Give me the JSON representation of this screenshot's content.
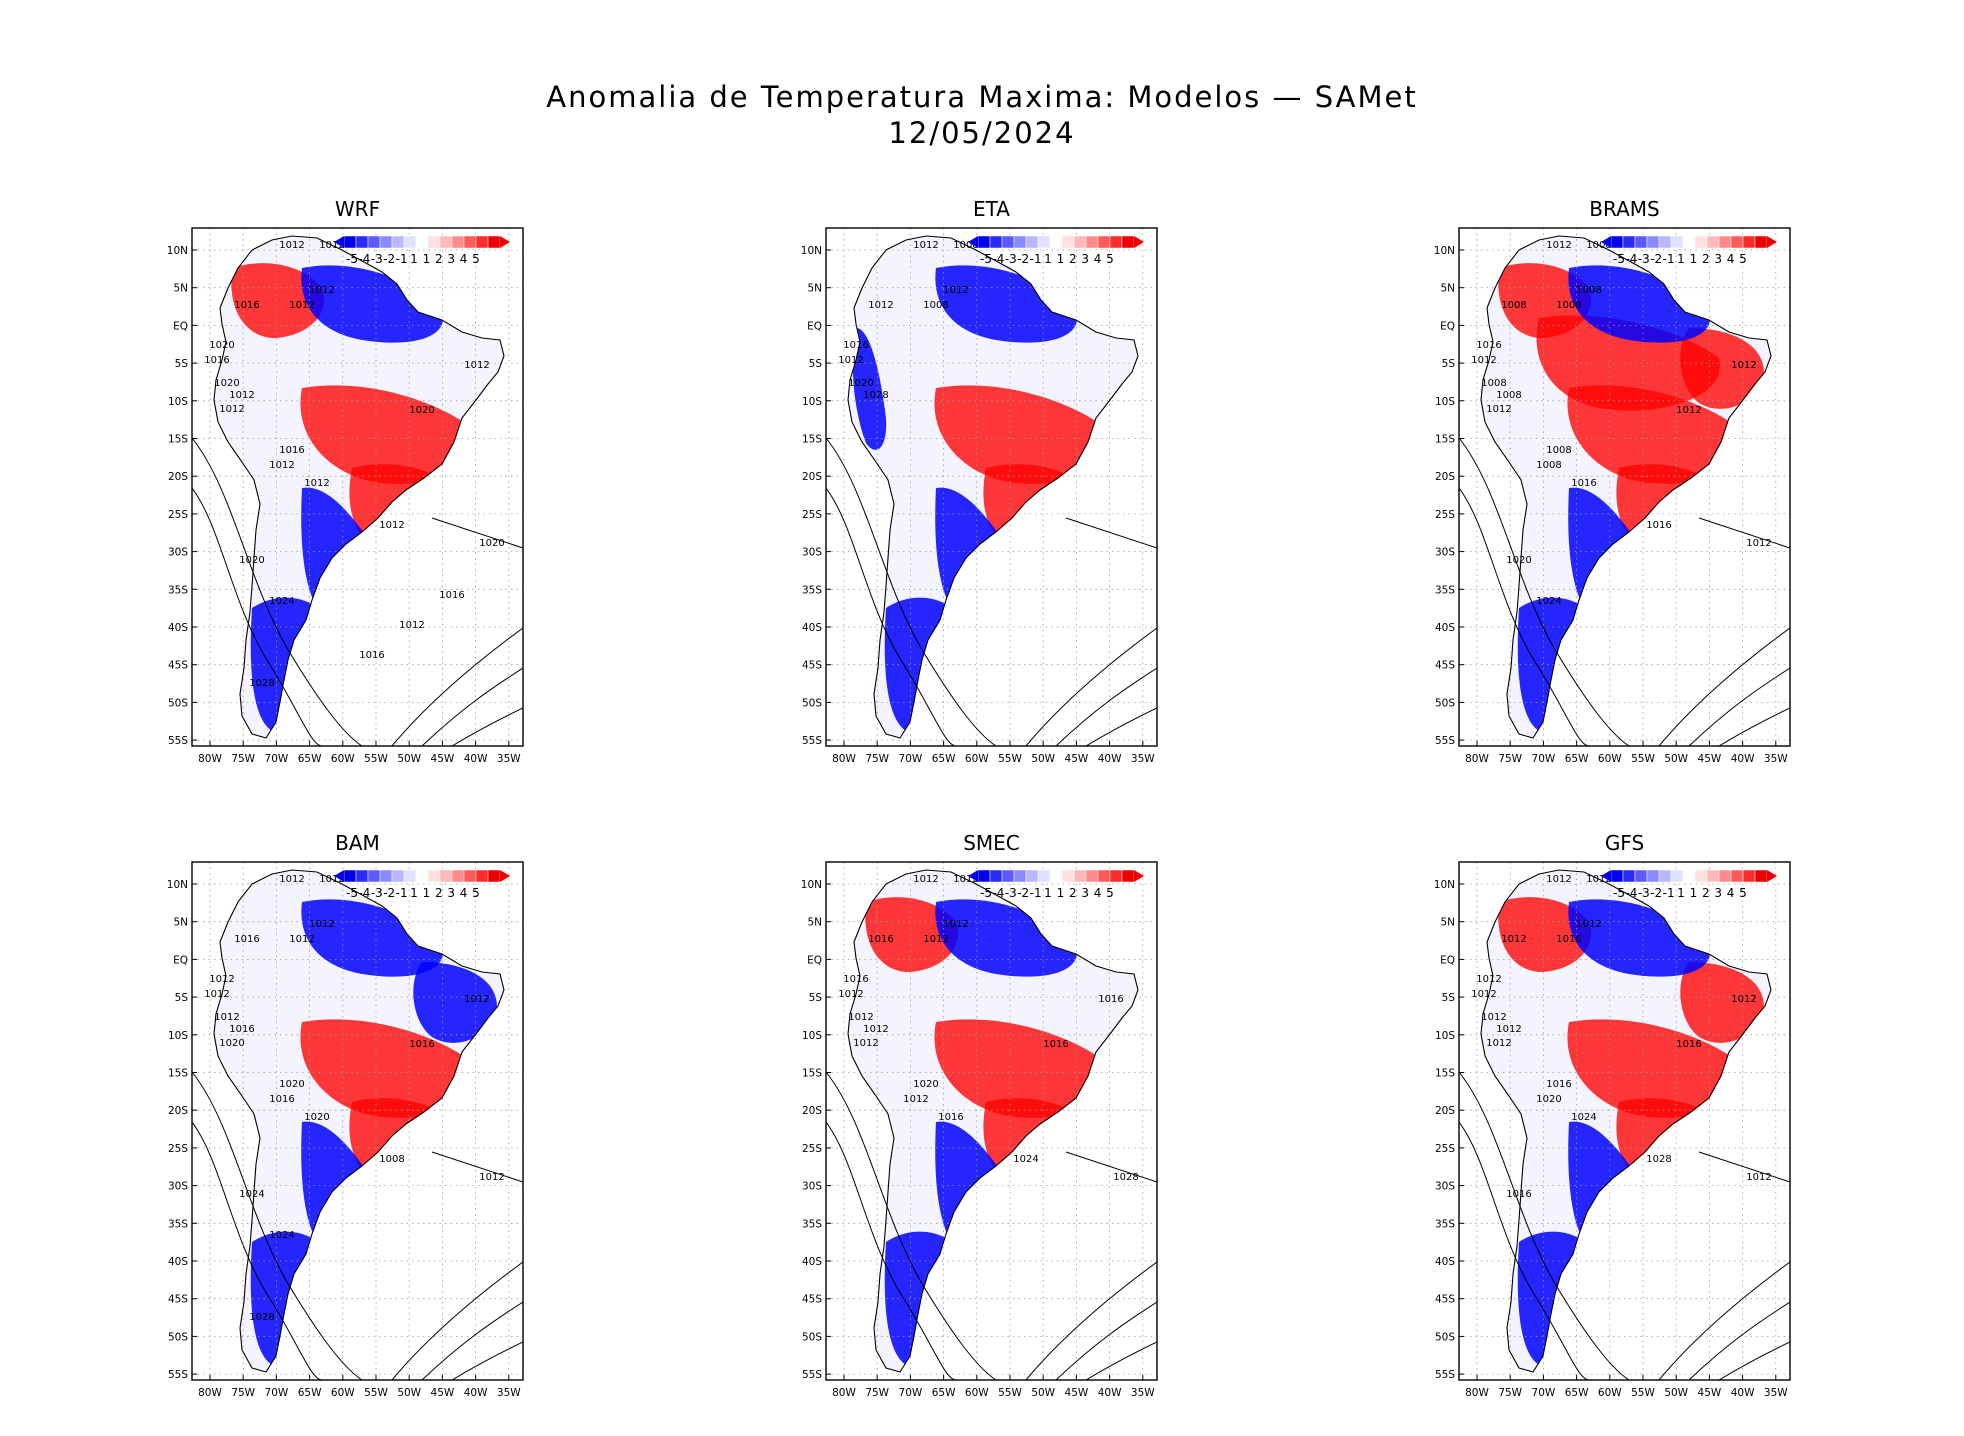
{
  "header": {
    "title": "Anomalia de Temperatura Maxima: Modelos — SAMet",
    "date": "12/05/2024"
  },
  "map": {
    "lat_ticks": [
      "10N",
      "5N",
      "EQ",
      "5S",
      "10S",
      "15S",
      "20S",
      "25S",
      "30S",
      "35S",
      "40S",
      "45S",
      "50S",
      "55S"
    ],
    "lon_ticks": [
      "80W",
      "75W",
      "70W",
      "65W",
      "60W",
      "55W",
      "50W",
      "45W",
      "40W",
      "35W"
    ],
    "lon_range": [
      -83,
      -33
    ],
    "lat_range": [
      -57,
      13
    ],
    "colorbar": {
      "labels": [
        "-5",
        "-4",
        "-3",
        "-2",
        "-1",
        "1",
        "1",
        "2",
        "3",
        "4",
        "5"
      ],
      "colors": [
        "#0000ee",
        "#2a2aff",
        "#5a5aff",
        "#8a8aff",
        "#b8b8ff",
        "#e0e0ff",
        "#ffffff",
        "#ffe0e0",
        "#ffb8b8",
        "#ff8a8a",
        "#ff5a5a",
        "#ff2a2a",
        "#ee0000"
      ]
    },
    "colors": {
      "cold": "#0000ff",
      "warm": "#ff0000",
      "neutral": "#ffffff"
    }
  },
  "panels": [
    {
      "name": "WRF",
      "isobar_labels": [
        "1012",
        "1012",
        "1012",
        "1016",
        "1012",
        "1020",
        "1016",
        "1020",
        "1012",
        "1012",
        "1012",
        "1020",
        "1016",
        "1012",
        "1012",
        "1012",
        "1020",
        "1020",
        "1024",
        "1028",
        "1016",
        "1012",
        "1016"
      ],
      "warm_regions": [
        "north-west",
        "central-brazil",
        "south-east"
      ],
      "cold_regions": [
        "amazon-north",
        "patagonia",
        "southern-cone"
      ]
    },
    {
      "name": "ETA",
      "isobar_labels": [
        "1012",
        "1008",
        "1012",
        "1012",
        "1008",
        "1016",
        "1012",
        "1020",
        "1028"
      ],
      "warm_regions": [
        "central-brazil",
        "south-east"
      ],
      "cold_regions": [
        "amazon-north",
        "patagonia",
        "southern-cone",
        "andes-north"
      ]
    },
    {
      "name": "BRAMS",
      "isobar_labels": [
        "1012",
        "1008",
        "1008",
        "1008",
        "1008",
        "1016",
        "1012",
        "1008",
        "1008",
        "1012",
        "1012",
        "1012",
        "1008",
        "1008",
        "1016",
        "1016",
        "1012",
        "1020",
        "1024"
      ],
      "warm_regions": [
        "north-west",
        "amazon",
        "central-brazil",
        "north-east",
        "south-east"
      ],
      "cold_regions": [
        "amazon-north",
        "patagonia",
        "southern-cone"
      ]
    },
    {
      "name": "BAM",
      "isobar_labels": [
        "1012",
        "1012",
        "1012",
        "1016",
        "1012",
        "1012",
        "1012",
        "1012",
        "1016",
        "1020",
        "1012",
        "1016",
        "1020",
        "1016",
        "1020",
        "1008",
        "1012",
        "1024",
        "1024",
        "1028"
      ],
      "warm_regions": [
        "central-brazil",
        "south-east"
      ],
      "cold_regions": [
        "amazon-north",
        "north-east",
        "patagonia",
        "southern-cone"
      ]
    },
    {
      "name": "SMEC",
      "isobar_labels": [
        "1012",
        "1012",
        "1012",
        "1016",
        "1012",
        "1016",
        "1012",
        "1012",
        "1012",
        "1012",
        "1016",
        "1016",
        "1020",
        "1012",
        "1016",
        "1024",
        "1028"
      ],
      "warm_regions": [
        "north-west",
        "central-brazil",
        "south-east"
      ],
      "cold_regions": [
        "amazon-north",
        "patagonia",
        "southern-cone"
      ]
    },
    {
      "name": "GFS",
      "isobar_labels": [
        "1012",
        "1012",
        "1012",
        "1012",
        "1016",
        "1012",
        "1012",
        "1012",
        "1012",
        "1012",
        "1012",
        "1016",
        "1016",
        "1020",
        "1024",
        "1028",
        "1012",
        "1016"
      ],
      "warm_regions": [
        "north-west",
        "central-brazil",
        "north-east",
        "south-east"
      ],
      "cold_regions": [
        "amazon-north",
        "patagonia",
        "southern-cone"
      ]
    }
  ]
}
